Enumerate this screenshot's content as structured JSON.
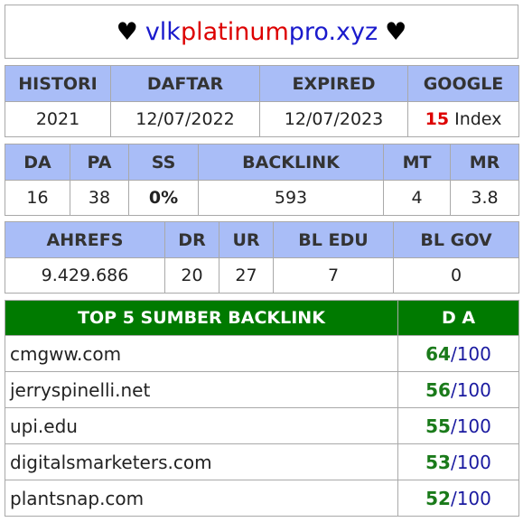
{
  "title": {
    "heart": "♥",
    "part1": "vlk",
    "part2": "platinum",
    "part3": "pro.xyz",
    "colors": {
      "part1": "#1a1acc",
      "part2": "#dd0000",
      "part3": "#1a1acc"
    }
  },
  "info": {
    "headers": [
      "HISTORI",
      "DAFTAR",
      "EXPIRED",
      "GOOGLE"
    ],
    "values": {
      "histori": "2021",
      "daftar": "12/07/2022",
      "expired": "12/07/2023",
      "google_count": "15",
      "google_label": " Index"
    }
  },
  "metrics": {
    "headers": [
      "DA",
      "PA",
      "SS",
      "BACKLINK",
      "MT",
      "MR"
    ],
    "values": [
      "16",
      "38",
      "0%",
      "593",
      "4",
      "3.8"
    ]
  },
  "ahrefs": {
    "headers": [
      "AHREFS",
      "DR",
      "UR",
      "BL EDU",
      "BL GOV"
    ],
    "values": [
      "9.429.686",
      "20",
      "27",
      "7",
      "0"
    ]
  },
  "sources": {
    "header_title": "TOP 5 SUMBER BACKLINK",
    "header_da": "D A",
    "rows": [
      {
        "site": "cmgww.com",
        "da": "64",
        "max": "100"
      },
      {
        "site": "jerryspinelli.net",
        "da": "56",
        "max": "100"
      },
      {
        "site": "upi.edu",
        "da": "55",
        "max": "100"
      },
      {
        "site": "digitalsmarketers.com",
        "da": "53",
        "max": "100"
      },
      {
        "site": "plantsnap.com",
        "da": "52",
        "max": "100"
      }
    ]
  },
  "colors": {
    "header_bg": "#a9bdf7",
    "source_header_bg": "#007a00",
    "da_green": "#1a7a1a",
    "da_blue": "#1a1aa0"
  }
}
